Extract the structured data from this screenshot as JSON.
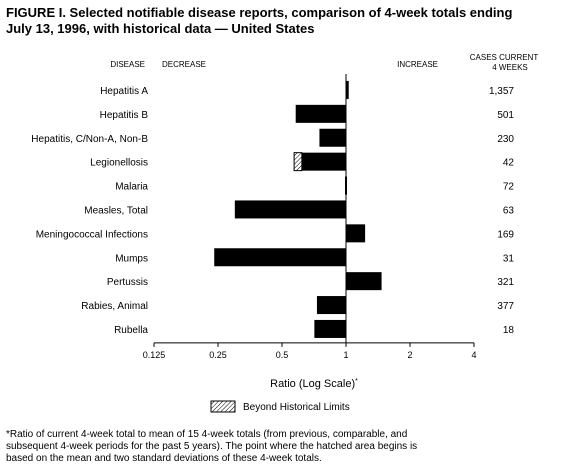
{
  "figure": {
    "title_lines": [
      "FIGURE I. Selected notifiable disease reports, comparison of 4-week totals ending",
      "July 13, 1996, with historical data — United States"
    ],
    "footnote_lines": [
      "*Ratio of current 4-week total to mean of 15 4-week totals (from previous, comparable, and",
      "subsequent 4-week periods for the past 5 years). The point where the hatched area begins is",
      "based on the mean and two standard deviations of these 4-week totals."
    ]
  },
  "chart_data": {
    "type": "bar",
    "orientation": "horizontal",
    "headers": {
      "disease": "DISEASE",
      "decrease": "DECREASE",
      "increase": "INCREASE",
      "cases_line1": "CASES CURRENT",
      "cases_line2": "4 WEEKS"
    },
    "categories": [
      "Hepatitis A",
      "Hepatitis B",
      "Hepatitis, C/Non-A, Non-B",
      "Legionellosis",
      "Malaria",
      "Measles, Total",
      "Meningococcal Infections",
      "Mumps",
      "Pertussis",
      "Rabies, Animal",
      "Rubella"
    ],
    "values": [
      1.03,
      0.58,
      0.75,
      0.57,
      0.99,
      0.3,
      1.23,
      0.24,
      1.47,
      0.73,
      0.71
    ],
    "beyond_historical_limits": [
      null,
      null,
      null,
      0.62,
      null,
      null,
      null,
      null,
      null,
      null,
      null
    ],
    "cases_current_4_weeks": [
      "1,357",
      "501",
      "230",
      "42",
      "72",
      "63",
      "169",
      "31",
      "321",
      "377",
      "18"
    ],
    "x_scale": "log",
    "xlim": [
      0.125,
      4
    ],
    "x_ticks": [
      0.125,
      0.25,
      0.5,
      1,
      2,
      4
    ],
    "x_tick_labels": [
      "0.125",
      "0.25",
      "0.5",
      "1",
      "2",
      "4"
    ],
    "reference_value": 1,
    "xlabel": "Ratio (Log Scale)",
    "xlabel_marker": "*",
    "legend": {
      "label": "Beyond Historical Limits",
      "placement": "bottom-center"
    },
    "colors": {
      "bar": "#000000",
      "hatch": "#000000",
      "background": "#ffffff"
    }
  }
}
